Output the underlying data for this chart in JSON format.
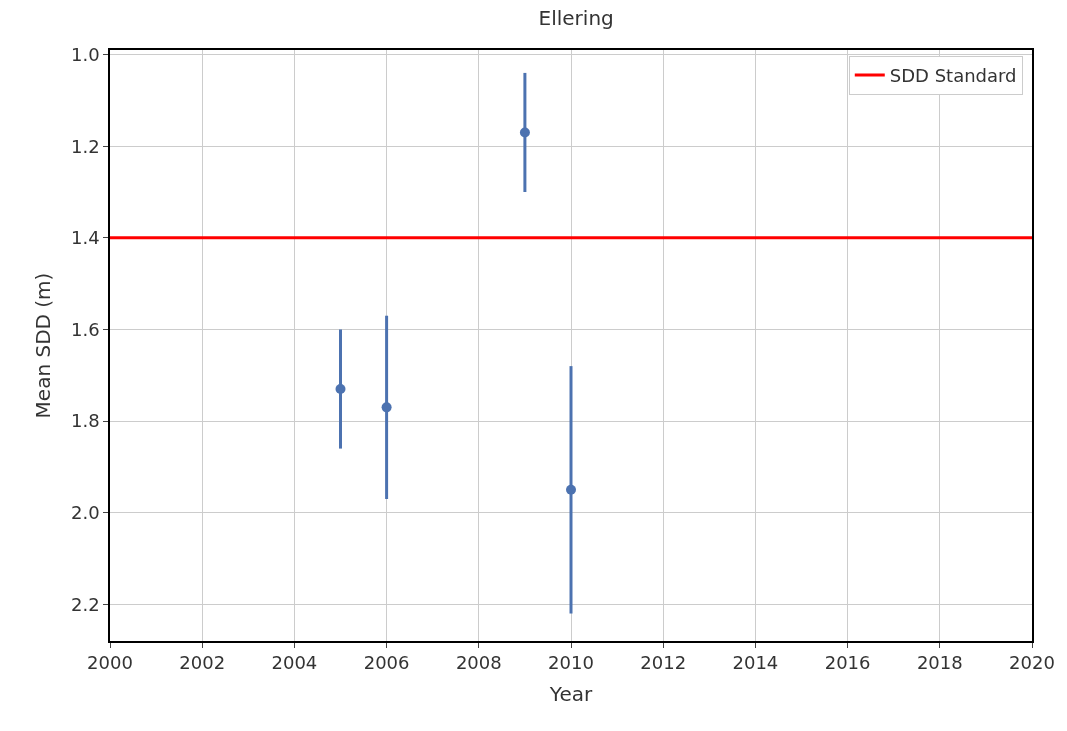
{
  "chart_data": {
    "type": "scatter",
    "title": "Ellering",
    "xlabel": "Year",
    "ylabel": "Mean SDD (m)",
    "x": [
      2005,
      2006,
      2009,
      2010
    ],
    "series": [
      {
        "color": "#4c72b0",
        "values": [
          1.73,
          1.77,
          1.17,
          1.95
        ],
        "errors": [
          0.13,
          0.2,
          0.13,
          0.27
        ]
      }
    ],
    "marker": "circle",
    "xlim": [
      2000,
      2020
    ],
    "xticks": [
      2000,
      2002,
      2004,
      2006,
      2008,
      2010,
      2012,
      2014,
      2016,
      2018,
      2020
    ],
    "ylim": [
      2.28,
      0.99
    ],
    "yticks": [
      {
        "value": 1.0,
        "label": "1.0"
      },
      1.2,
      1.4,
      1.6,
      1.8,
      {
        "value": 2.0,
        "label": "2.0"
      },
      2.2
    ],
    "ref_lines": [
      {
        "axis": "y",
        "value": 1.4,
        "label": "SDD Standard",
        "color": "#ff0000"
      }
    ],
    "grid": true,
    "legend": "top right"
  }
}
